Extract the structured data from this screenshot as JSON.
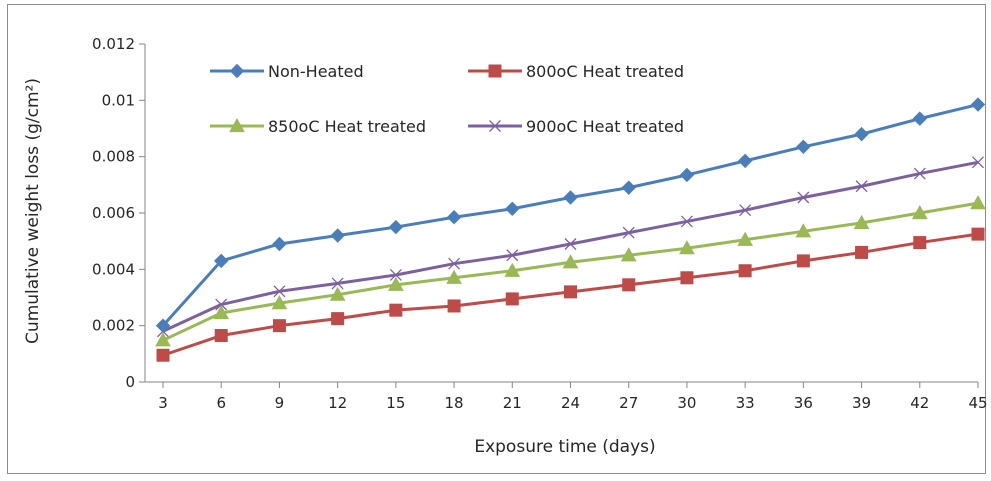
{
  "chart_data": {
    "type": "line",
    "xlabel": "Exposure time (days)",
    "ylabel": "Cumulative weight loss (g/cm²)",
    "categories": [
      "3",
      "6",
      "9",
      "12",
      "15",
      "18",
      "21",
      "24",
      "27",
      "30",
      "33",
      "36",
      "39",
      "42",
      "45"
    ],
    "x": [
      3,
      6,
      9,
      12,
      15,
      18,
      21,
      24,
      27,
      30,
      33,
      36,
      39,
      42,
      45
    ],
    "ylim": [
      0,
      0.012
    ],
    "y_ticks": [
      "0",
      "0.002",
      "0.004",
      "0.006",
      "0.008",
      "0.01",
      "0.012"
    ],
    "y_tick_values": [
      0,
      0.002,
      0.004,
      0.006,
      0.008,
      0.01,
      0.012
    ],
    "grid": false,
    "legend_position": "top, inside plot area, two columns",
    "series": [
      {
        "name": "Non-Heated",
        "color": "#4a7ebb",
        "marker": "diamond",
        "values": [
          0.002,
          0.0043,
          0.0049,
          0.0052,
          0.0055,
          0.00585,
          0.00615,
          0.00655,
          0.0069,
          0.00735,
          0.00785,
          0.00835,
          0.0088,
          0.00935,
          0.00985
        ]
      },
      {
        "name": "800oC Heat treated",
        "color": "#be4b48",
        "marker": "square",
        "values": [
          0.00095,
          0.00165,
          0.002,
          0.00225,
          0.00255,
          0.0027,
          0.00295,
          0.0032,
          0.00345,
          0.0037,
          0.00395,
          0.0043,
          0.0046,
          0.00495,
          0.00525
        ]
      },
      {
        "name": "850oC Heat treated",
        "color": "#98b954",
        "marker": "triangle",
        "values": [
          0.00148,
          0.00245,
          0.0028,
          0.0031,
          0.00345,
          0.0037,
          0.00395,
          0.00425,
          0.0045,
          0.00475,
          0.00505,
          0.00535,
          0.00565,
          0.006,
          0.00635
        ]
      },
      {
        "name": "900oC Heat treated",
        "color": "#7d60a0",
        "marker": "x",
        "values": [
          0.0018,
          0.00275,
          0.00322,
          0.0035,
          0.0038,
          0.0042,
          0.0045,
          0.0049,
          0.0053,
          0.0057,
          0.0061,
          0.00655,
          0.00695,
          0.0074,
          0.0078
        ]
      }
    ]
  }
}
